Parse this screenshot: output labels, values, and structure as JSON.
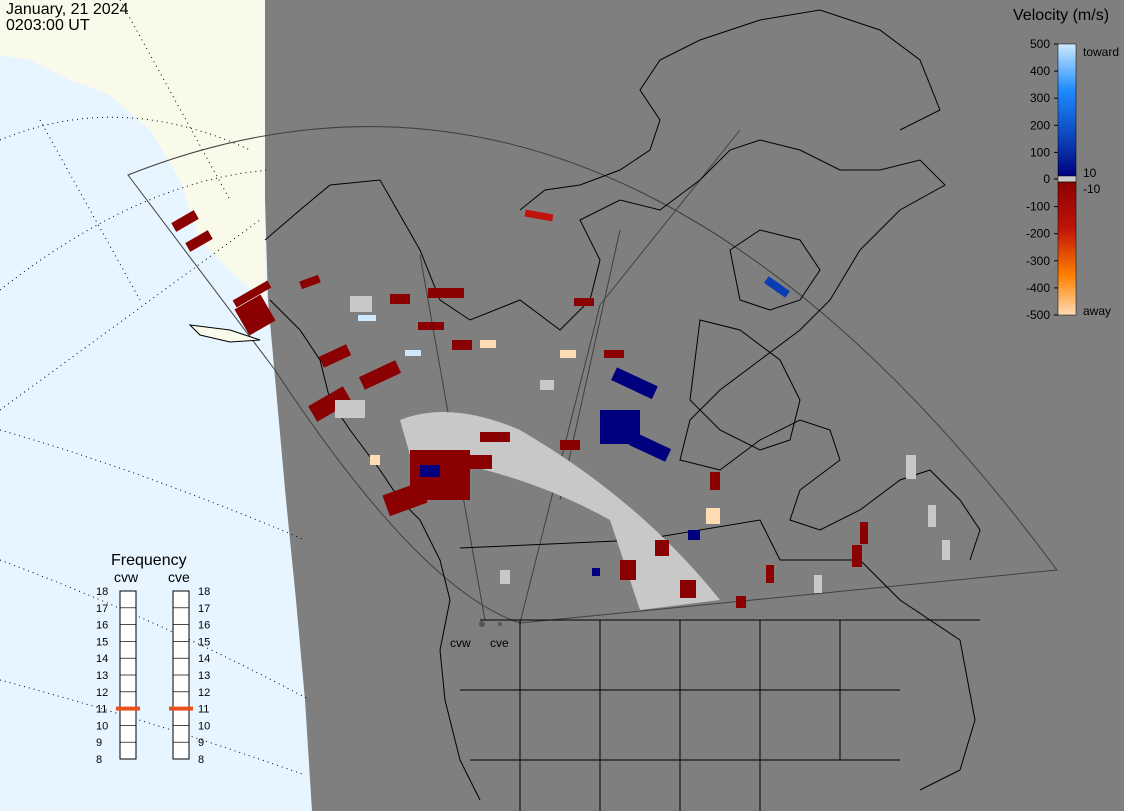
{
  "header": {
    "date": "January, 21 2024",
    "time": "0203:00 UT"
  },
  "velocity_scale": {
    "title": "Velocity (m/s)",
    "ticks": [
      "500",
      "400",
      "300",
      "200",
      "100",
      "0",
      "-100",
      "-200",
      "-300",
      "-400",
      "-500"
    ],
    "toward_label": "toward",
    "away_label": "away",
    "small_pos_label": "10",
    "small_neg_label": "-10",
    "colors": {
      "toward_top": "#cde9ff",
      "toward_mid": "#1e8cff",
      "toward_low": "#00007f",
      "ground_scatter": "#c8c8c8",
      "away_low": "#8b0000",
      "away_mid": "#ff7f00",
      "away_top": "#ffdcb4"
    }
  },
  "frequency_panel": {
    "title": "Frequency",
    "radars": [
      {
        "name": "cvw",
        "frequency_mhz": 11
      },
      {
        "name": "cve",
        "frequency_mhz": 11
      }
    ],
    "scale_min": 8,
    "scale_max": 18,
    "ticks": [
      "18",
      "17",
      "16",
      "15",
      "14",
      "13",
      "12",
      "11",
      "10",
      "9",
      "8"
    ],
    "marker_color": "#e8501e"
  },
  "map": {
    "night_color": "#7f7f7f",
    "ocean_day_color": "#e6f5ff",
    "land_day_color": "#fafaeb",
    "station_labels": [
      "cvw",
      "cve"
    ]
  }
}
